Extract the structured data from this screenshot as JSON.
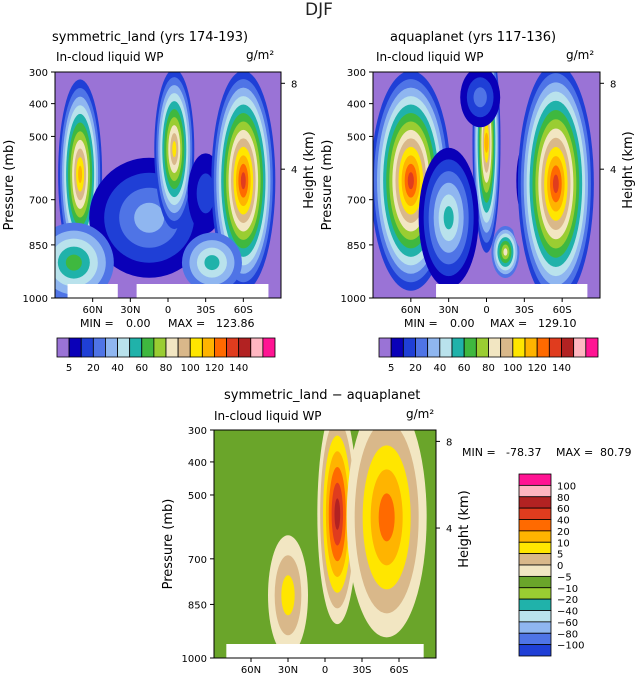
{
  "figure": {
    "title": "DJF"
  },
  "colors": {
    "wp_levels": [
      "#9a73d6",
      "#0a00b8",
      "#1f3fd6",
      "#4f74e6",
      "#8fb6f0",
      "#b9e2ec",
      "#20b2aa",
      "#3fb83f",
      "#9acd32",
      "#f2e6c2",
      "#d9b88a",
      "#ffe600",
      "#ffb400",
      "#ff6a00",
      "#e03c1e",
      "#b22222",
      "#ffb6c1",
      "#ff1493"
    ],
    "diff_levels": [
      "#9a73d6",
      "#0a00b8",
      "#1f3fd6",
      "#4f74e6",
      "#8fb6f0",
      "#b9e2ec",
      "#20b2aa",
      "#9acd32",
      "#6aa52a",
      "#f2e6c2",
      "#d9b88a",
      "#ffe600",
      "#ffb400",
      "#ff6a00",
      "#e03c1e",
      "#b22222",
      "#ffb6c1",
      "#ff1493"
    ]
  },
  "chart_data": [
    {
      "type": "heatmap",
      "title": "symmetric_land (yrs 174-193)",
      "subtitle": "In-cloud liquid WP",
      "units": "g/m²",
      "ylabel": "Pressure (mb)",
      "y2label": "Height (km)",
      "xticks": [
        "60N",
        "30N",
        "0",
        "30S",
        "60S"
      ],
      "yticks": [
        "300",
        "400",
        "500",
        "700",
        "850",
        "1000"
      ],
      "y2ticks": [
        "8",
        "4"
      ],
      "stats": {
        "min_label": "MIN =",
        "min": "0.00",
        "max_label": "MAX =",
        "max": "123.86"
      },
      "colorbar_labels": [
        "5",
        "20",
        "40",
        "60",
        "80",
        "100",
        "120",
        "140"
      ],
      "maxima": [
        {
          "lat": -15,
          "p": 650,
          "value": 75
        },
        {
          "lat": 5,
          "p": 520,
          "value": 90
        },
        {
          "lat": 58,
          "p": 600,
          "value": 123.86
        }
      ]
    },
    {
      "type": "heatmap",
      "title": "aquaplanet (yrs 117-136)",
      "subtitle": "In-cloud liquid WP",
      "units": "g/m²",
      "ylabel": "Pressure (mb)",
      "y2label": "Height (km)",
      "xticks": [
        "60N",
        "30N",
        "0",
        "30S",
        "60S"
      ],
      "yticks": [
        "300",
        "400",
        "500",
        "700",
        "850",
        "1000"
      ],
      "y2ticks": [
        "8",
        "4"
      ],
      "stats": {
        "min_label": "MIN =",
        "min": "0.00",
        "max_label": "MAX =",
        "max": "129.10"
      },
      "colorbar_labels": [
        "5",
        "20",
        "40",
        "60",
        "80",
        "100",
        "120",
        "140"
      ],
      "maxima": [
        {
          "lat": -60,
          "p": 640,
          "value": 120
        },
        {
          "lat": 0,
          "p": 500,
          "value": 110
        },
        {
          "lat": 55,
          "p": 610,
          "value": 129.1
        }
      ]
    },
    {
      "type": "heatmap",
      "title": "symmetric_land − aquaplanet",
      "subtitle": "In-cloud liquid WP",
      "units": "g/m²",
      "ylabel": "Pressure (mb)",
      "y2label": "Height (km)",
      "xticks": [
        "60N",
        "30N",
        "0",
        "30S",
        "60S"
      ],
      "yticks": [
        "300",
        "400",
        "500",
        "700",
        "850",
        "1000"
      ],
      "y2ticks": [
        "8",
        "4"
      ],
      "stats": {
        "min_label": "MIN =",
        "min": "-78.37",
        "max_label": "MAX =",
        "max": "80.79"
      },
      "colorbar_labels": [
        "100",
        "80",
        "60",
        "40",
        "20",
        "10",
        "5",
        "0",
        "−5",
        "−10",
        "−20",
        "−40",
        "−60",
        "−80",
        "−100"
      ]
    }
  ]
}
